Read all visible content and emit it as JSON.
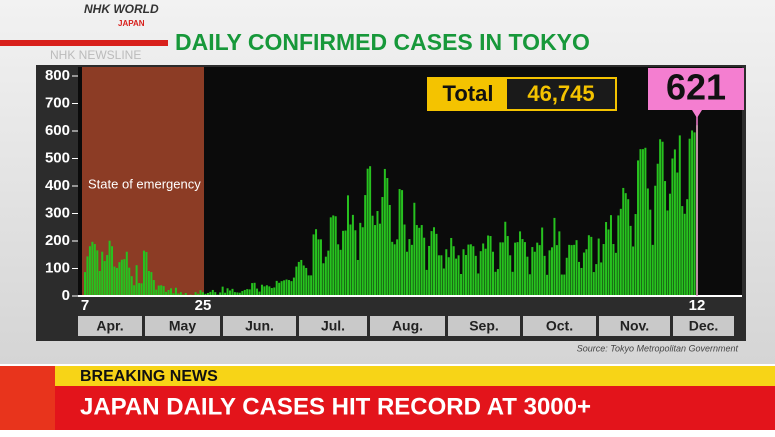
{
  "chart_data": {
    "type": "bar",
    "title": "DAILY CONFIRMED CASES IN TOKYO",
    "brand": "NHK WORLD",
    "brand_sub": "JAPAN",
    "program": "NHK NEWSLINE",
    "annotation": "State of emergency",
    "total": {
      "label": "Total",
      "amount": {
        "value": 46745,
        "label": "46,745"
      }
    },
    "callout": 621,
    "source": "Source: Tokyo Metropolitan Government",
    "color": "#27c21f",
    "ylim": [
      0,
      830
    ],
    "yticks": [
      0,
      100,
      200,
      300,
      400,
      500,
      600,
      700,
      800
    ],
    "months": [
      "Apr.",
      "May",
      "Jun.",
      "Jul.",
      "Aug.",
      "Sep.",
      "Oct.",
      "Nov.",
      "Dec."
    ],
    "categories": [
      "7",
      null,
      null,
      null,
      null,
      null,
      null,
      null,
      null,
      null,
      null,
      null,
      null,
      null,
      null,
      null,
      null,
      null,
      null,
      null,
      null,
      null,
      null,
      null,
      null,
      null,
      null,
      null,
      null,
      null,
      null,
      null,
      null,
      null,
      null,
      null,
      null,
      null,
      null,
      null,
      null,
      null,
      null,
      null,
      null,
      null,
      null,
      null,
      "25",
      null,
      null,
      null,
      null,
      null,
      null,
      null,
      null,
      null,
      null,
      null,
      null,
      null,
      null,
      null,
      null,
      null,
      null,
      null,
      null,
      null,
      null,
      null,
      null,
      null,
      null,
      null,
      null,
      null,
      null,
      null,
      null,
      null,
      null,
      null,
      null,
      null,
      null,
      null,
      null,
      null,
      null,
      null,
      null,
      null,
      null,
      null,
      null,
      null,
      null,
      null,
      null,
      null,
      null,
      null,
      null,
      null,
      null,
      null,
      null,
      null,
      null,
      null,
      null,
      null,
      null,
      null,
      null,
      null,
      null,
      null,
      null,
      null,
      null,
      null,
      null,
      null,
      null,
      null,
      null,
      null,
      null,
      null,
      null,
      null,
      null,
      null,
      null,
      null,
      null,
      null,
      null,
      null,
      null,
      null,
      null,
      null,
      null,
      null,
      null,
      null,
      null,
      null,
      null,
      null,
      null,
      null,
      null,
      null,
      null,
      null,
      null,
      null,
      null,
      null,
      null,
      null,
      null,
      null,
      null,
      null,
      null,
      null,
      null,
      null,
      null,
      null,
      null,
      null,
      null,
      null,
      null,
      null,
      null,
      null,
      null,
      null,
      null,
      null,
      null,
      null,
      null,
      null,
      null,
      null,
      null,
      null,
      null,
      null,
      null,
      null,
      null,
      null,
      null,
      null,
      null,
      null,
      null,
      null,
      null,
      null,
      null,
      null,
      null,
      null,
      null,
      null,
      null,
      null,
      null,
      null,
      null,
      null,
      null,
      null,
      null,
      null,
      null,
      null,
      null,
      null,
      null,
      null,
      null,
      null,
      null,
      null,
      null,
      null,
      null,
      null,
      null,
      null,
      null,
      null,
      null,
      null,
      null,
      null,
      null,
      "12"
    ],
    "values": [
      87,
      144,
      181,
      197,
      189,
      166,
      91,
      161,
      127,
      149,
      201,
      181,
      107,
      102,
      123,
      132,
      134,
      161,
      103,
      72,
      39,
      112,
      47,
      46,
      165,
      160,
      91,
      87,
      58,
      23,
      38,
      39,
      36,
      15,
      22,
      28,
      10,
      30,
      9,
      14,
      5,
      11,
      3,
      5,
      2,
      14,
      8,
      21,
      14,
      8,
      11,
      15,
      22,
      14,
      5,
      13,
      34,
      12,
      28,
      20,
      26,
      14,
      13,
      12,
      18,
      22,
      25,
      24,
      47,
      48,
      27,
      16,
      41,
      35,
      39,
      35,
      29,
      31,
      55,
      48,
      54,
      57,
      60,
      58,
      54,
      67,
      107,
      124,
      131,
      111,
      102,
      75,
      75,
      224,
      243,
      206,
      206,
      119,
      143,
      165,
      286,
      293,
      290,
      188,
      168,
      237,
      238,
      366,
      260,
      295,
      239,
      131,
      266,
      250,
      367,
      463,
      472,
      292,
      258,
      309,
      263,
      360,
      462,
      429,
      331,
      197,
      188,
      206,
      389,
      385,
      260,
      161,
      207,
      186,
      339,
      258,
      248,
      258,
      212,
      95,
      182,
      236,
      250,
      226,
      148,
      148,
      100,
      170,
      141,
      211,
      181,
      136,
      148,
      80,
      170,
      149,
      187,
      188,
      181,
      146,
      82,
      163,
      191,
      172,
      220,
      218,
      161,
      88,
      98,
      195,
      195,
      270,
      218,
      148,
      88,
      194,
      196,
      235,
      207,
      196,
      143,
      79,
      178,
      161,
      194,
      185,
      249,
      146,
      77,
      166,
      177,
      284,
      185,
      235,
      78,
      78,
      139,
      186,
      185,
      186,
      203,
      124,
      102,
      158,
      170,
      221,
      215,
      87,
      116,
      209,
      122,
      189,
      269,
      242,
      294,
      189,
      157,
      293,
      317,
      393,
      374,
      352,
      255,
      180,
      298,
      493,
      534,
      534,
      539,
      391,
      314,
      186,
      401,
      481,
      570,
      561,
      418,
      311,
      372,
      500,
      533,
      449,
      584,
      327,
      299,
      352,
      572,
      602,
      595,
      621
    ],
    "ticker_header": "BREAKING NEWS",
    "ticker_text": "JAPAN DAILY CASES HIT RECORD AT 3000+"
  }
}
